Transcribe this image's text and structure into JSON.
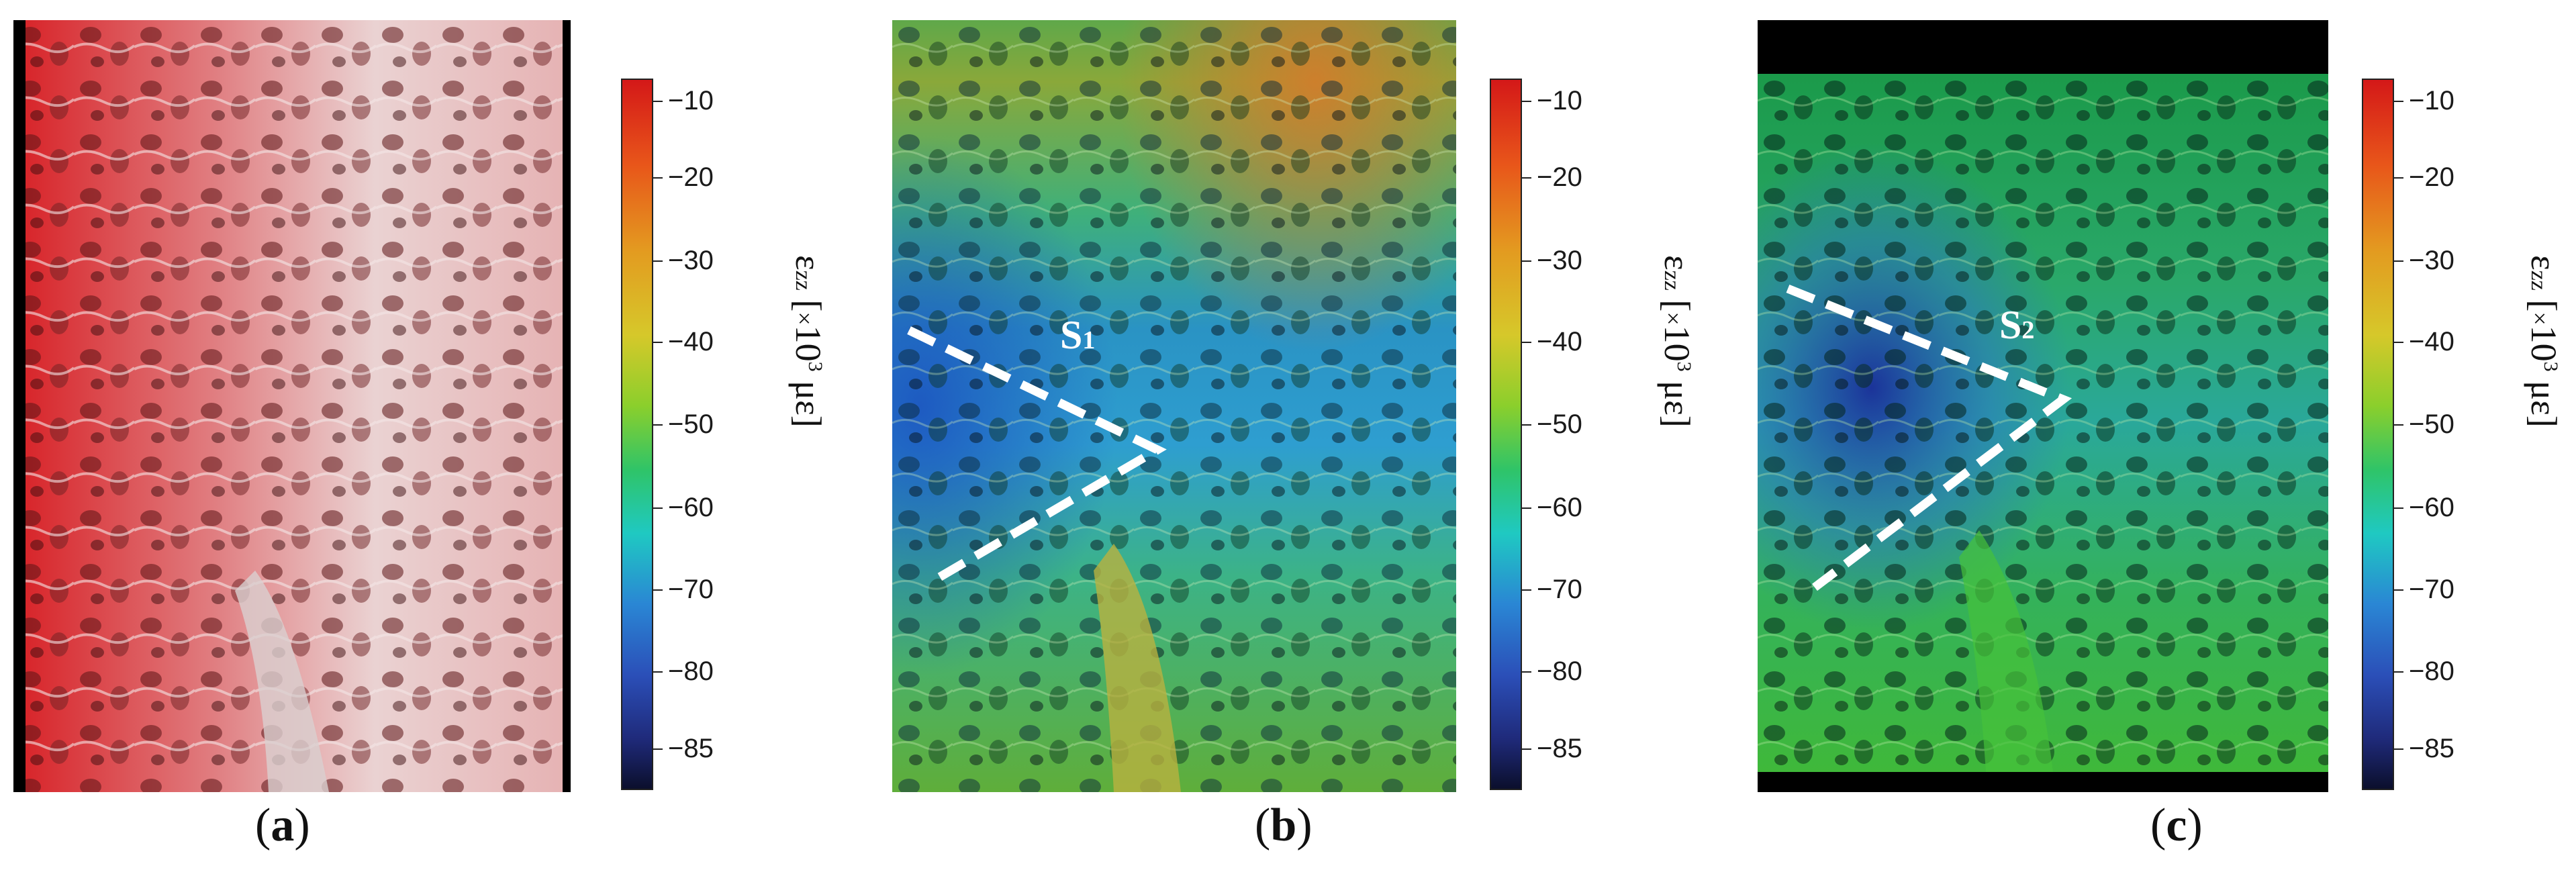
{
  "colorbar_ticks": [
    "−10",
    "−20",
    "−30",
    "−40",
    "−50",
    "−60",
    "−70",
    "−80",
    "−85"
  ],
  "axis_label": {
    "epsilon": "ε",
    "subscript": "zz",
    "unit_prefix": "[",
    "times": "×",
    "base": "10",
    "exponent": "3",
    "unit": "με]"
  },
  "panels": [
    {
      "caption_open": "(",
      "caption_letter": "a",
      "caption_close": ")"
    },
    {
      "caption_open": "(",
      "caption_letter": "b",
      "caption_close": ")",
      "annotation": {
        "letter": "S",
        "subscript": "1"
      }
    },
    {
      "caption_open": "(",
      "caption_letter": "c",
      "caption_close": ")",
      "annotation": {
        "letter": "S",
        "subscript": "2"
      }
    }
  ],
  "colors": {
    "line": "#ffffff",
    "frame": "#000000"
  }
}
